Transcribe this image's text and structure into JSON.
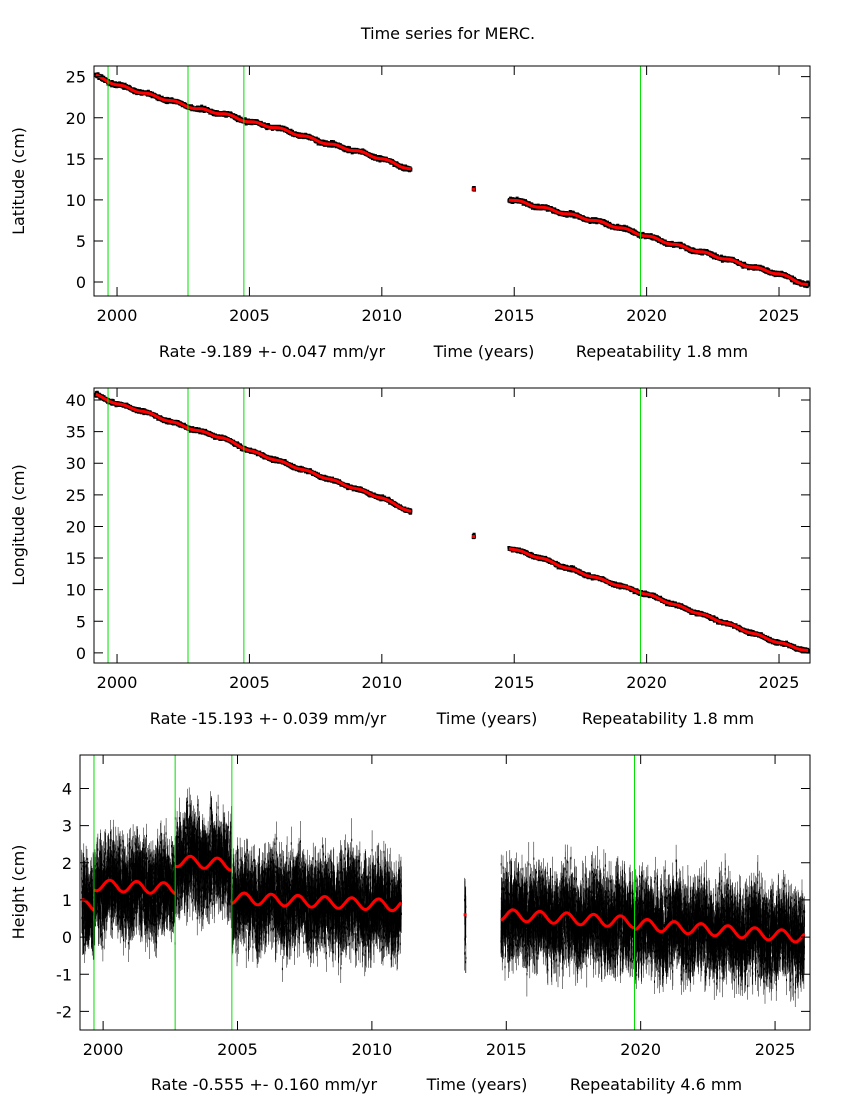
{
  "title": "Time series for MERC.",
  "colors": {
    "data": "#000000",
    "model": "#ff0000",
    "event_lines": "#00e000",
    "frame": "#000000"
  },
  "chart_data": [
    {
      "type": "scatter",
      "ylabel": "Latitude (cm)",
      "xlabel": "Time (years)",
      "rate_text": "Rate -9.189 +- 0.047 mm/yr",
      "repeatability_text": "Repeatability 1.8 mm",
      "xlim": [
        1999.13,
        2026.17
      ],
      "ylim": [
        -1.7,
        26.3
      ],
      "xticks": [
        "2000",
        "2005",
        "2010",
        "2015",
        "2020",
        "2025"
      ],
      "yticks": [
        "0",
        "5",
        "10",
        "15",
        "20",
        "25"
      ],
      "event_lines": [
        1999.66,
        2002.68,
        2004.79,
        2019.77
      ],
      "noise": 0.25,
      "segments": [
        [
          [
            1999.2,
            25.1
          ],
          [
            2000,
            24.0
          ],
          [
            2001,
            23.0
          ],
          [
            2002,
            22.1
          ],
          [
            2003,
            21.1
          ],
          [
            2004,
            20.5
          ],
          [
            2005,
            19.5
          ],
          [
            2006,
            18.8
          ],
          [
            2007,
            17.8
          ],
          [
            2008,
            16.8
          ],
          [
            2009,
            16.0
          ],
          [
            2010,
            15.0
          ],
          [
            2011.1,
            13.7
          ]
        ],
        [
          [
            2013.45,
            11.3
          ],
          [
            2013.5,
            11.3
          ]
        ],
        [
          [
            2014.8,
            10.1
          ],
          [
            2016,
            9.1
          ],
          [
            2017,
            8.3
          ],
          [
            2018,
            7.5
          ],
          [
            2019,
            6.6
          ],
          [
            2020,
            5.6
          ],
          [
            2021,
            4.6
          ],
          [
            2022,
            3.7
          ],
          [
            2023,
            2.8
          ],
          [
            2024,
            1.8
          ],
          [
            2025,
            1.0
          ],
          [
            2026.1,
            -0.4
          ]
        ]
      ]
    },
    {
      "type": "scatter",
      "ylabel": "Longitude (cm)",
      "xlabel": "Time (years)",
      "rate_text": "Rate -15.193 +- 0.039 mm/yr",
      "repeatability_text": "Repeatability 1.8 mm",
      "xlim": [
        1999.13,
        2026.17
      ],
      "ylim": [
        -1.6,
        41.9
      ],
      "xticks": [
        "2000",
        "2005",
        "2010",
        "2015",
        "2020",
        "2025"
      ],
      "yticks": [
        "0",
        "5",
        "10",
        "15",
        "20",
        "25",
        "30",
        "35",
        "40"
      ],
      "event_lines": [
        1999.66,
        2002.68,
        2004.79,
        2019.77
      ],
      "noise": 0.3,
      "segments": [
        [
          [
            1999.2,
            40.8
          ],
          [
            2000,
            39.4
          ],
          [
            2001,
            38.2
          ],
          [
            2002,
            36.6
          ],
          [
            2003,
            35.2
          ],
          [
            2004,
            34.0
          ],
          [
            2005,
            32.0
          ],
          [
            2006,
            30.5
          ],
          [
            2007,
            29.0
          ],
          [
            2008,
            27.5
          ],
          [
            2009,
            26.0
          ],
          [
            2010,
            24.5
          ],
          [
            2011.1,
            22.3
          ]
        ],
        [
          [
            2013.45,
            18.4
          ],
          [
            2013.5,
            18.4
          ]
        ],
        [
          [
            2014.8,
            16.6
          ],
          [
            2016,
            15.0
          ],
          [
            2017,
            13.4
          ],
          [
            2018,
            12.0
          ],
          [
            2019,
            10.6
          ],
          [
            2020,
            9.3
          ],
          [
            2021,
            7.7
          ],
          [
            2022,
            6.2
          ],
          [
            2023,
            4.7
          ],
          [
            2024,
            3.1
          ],
          [
            2025,
            1.6
          ],
          [
            2026.1,
            0.3
          ]
        ]
      ]
    },
    {
      "type": "scatter",
      "ylabel": "Height (cm)",
      "xlabel": "Time (years)",
      "rate_text": "Rate -0.555 +- 0.160 mm/yr",
      "repeatability_text": "Repeatability 4.6 mm",
      "xlim": [
        1999.14,
        2026.3
      ],
      "ylim": [
        -2.5,
        4.9
      ],
      "xticks": [
        "2000",
        "2005",
        "2010",
        "2015",
        "2020",
        "2025"
      ],
      "yticks": [
        "-2",
        "-1",
        "0",
        "1",
        "2",
        "3",
        "4"
      ],
      "event_lines": [
        1999.66,
        2002.68,
        2004.79,
        2019.77
      ],
      "noise": 0.55,
      "annual_amplitude": 0.15,
      "segments": [
        [
          [
            1999.2,
            0.85
          ],
          [
            1999.66,
            0.85
          ]
        ],
        [
          [
            1999.66,
            1.4
          ],
          [
            2002.68,
            1.3
          ]
        ],
        [
          [
            2002.68,
            2.05
          ],
          [
            2004.79,
            1.95
          ]
        ],
        [
          [
            2004.79,
            1.05
          ],
          [
            2011.1,
            0.85
          ]
        ],
        [
          [
            2013.45,
            0.6
          ],
          [
            2013.5,
            0.6
          ]
        ],
        [
          [
            2014.8,
            0.6
          ],
          [
            2019.77,
            0.4
          ]
        ],
        [
          [
            2019.77,
            0.35
          ],
          [
            2026.1,
            0.0
          ]
        ]
      ]
    }
  ]
}
